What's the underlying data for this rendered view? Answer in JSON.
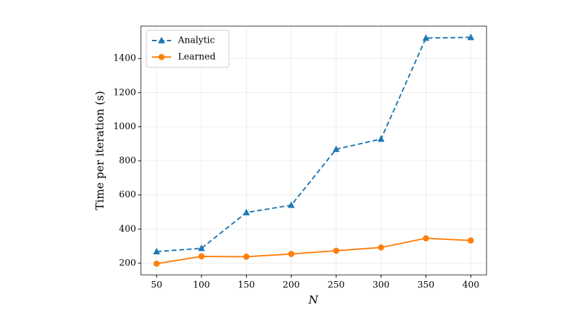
{
  "chart_data": {
    "type": "line",
    "x_label": "N",
    "y_label": "Time per iteration (s)",
    "x": [
      50,
      100,
      150,
      200,
      250,
      300,
      350,
      400
    ],
    "series": [
      {
        "name": "Analytic",
        "color": "#1f77b4",
        "linestyle": "dashed",
        "marker": "triangle",
        "values": [
          268,
          287,
          497,
          540,
          868,
          928,
          1520,
          1524
        ]
      },
      {
        "name": "Learned",
        "color": "#ff7f0e",
        "linestyle": "solid",
        "marker": "circle",
        "values": [
          197,
          240,
          238,
          254,
          273,
          292,
          346,
          333
        ]
      }
    ],
    "xlim": [
      32.5,
      417.5
    ],
    "xticks": [
      50,
      100,
      150,
      200,
      250,
      300,
      350,
      400
    ],
    "ylim": [
      131,
      1590
    ],
    "yticks": [
      200,
      400,
      600,
      800,
      1000,
      1200,
      1400
    ],
    "grid": true,
    "legend": "upper left"
  }
}
